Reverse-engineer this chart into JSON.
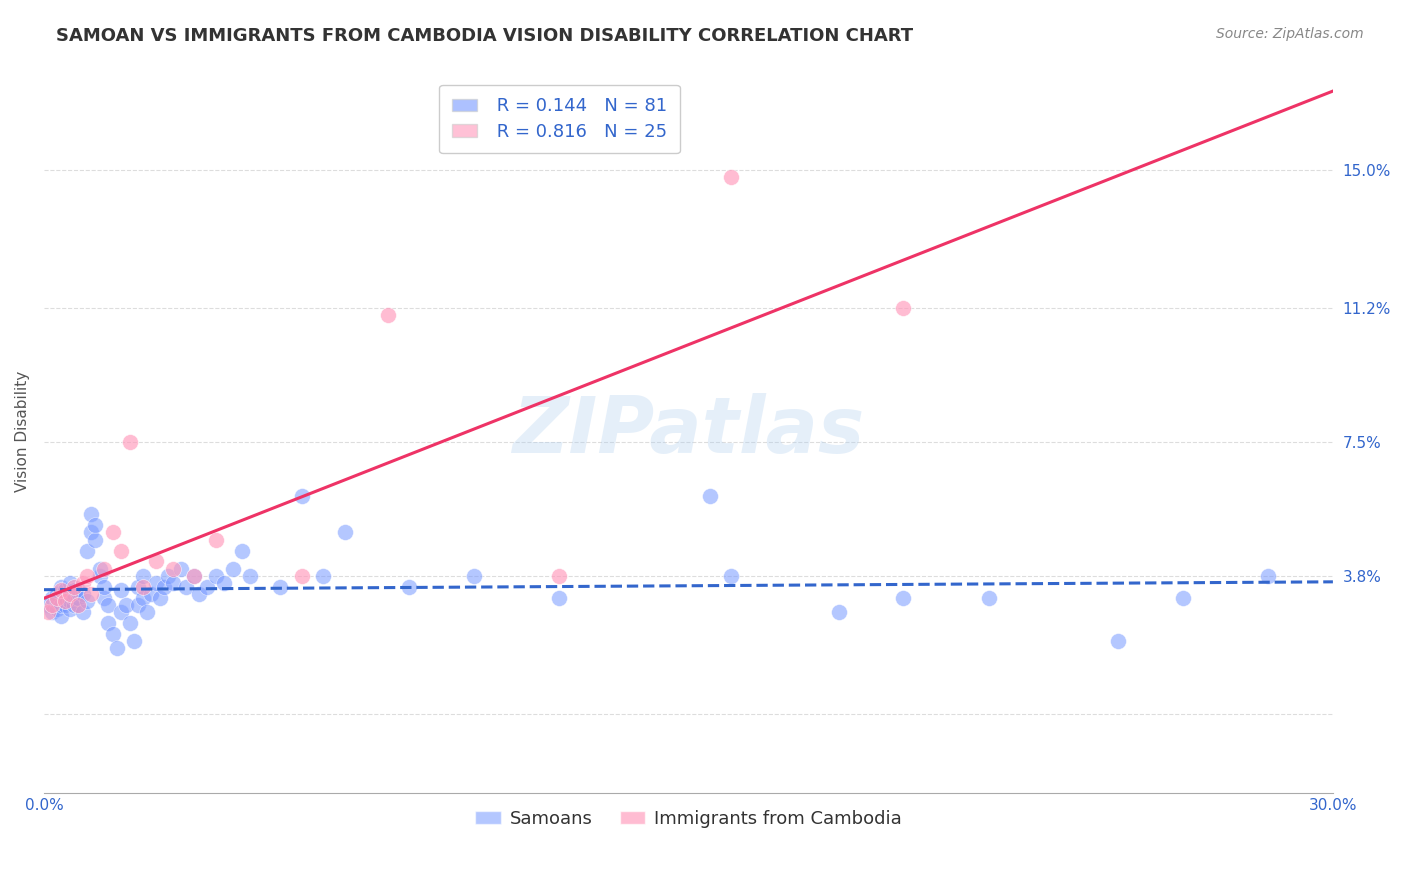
{
  "title": "SAMOAN VS IMMIGRANTS FROM CAMBODIA VISION DISABILITY CORRELATION CHART",
  "source": "Source: ZipAtlas.com",
  "ylabel": "Vision Disability",
  "xlim": [
    0.0,
    0.3
  ],
  "ylim": [
    -0.022,
    0.178
  ],
  "xticks": [
    0.0,
    0.05,
    0.1,
    0.15,
    0.2,
    0.25,
    0.3
  ],
  "xticklabels": [
    "0.0%",
    "",
    "",
    "",
    "",
    "",
    "30.0%"
  ],
  "ytick_positions": [
    0.0,
    0.038,
    0.075,
    0.112,
    0.15
  ],
  "yticklabels": [
    "",
    "3.8%",
    "7.5%",
    "11.2%",
    "15.0%"
  ],
  "background_color": "#ffffff",
  "grid_color": "#dddddd",
  "watermark": "ZIPatlas",
  "blue_color": "#7799ff",
  "pink_color": "#ff99bb",
  "blue_line_color": "#3366cc",
  "pink_line_color": "#ee3366",
  "R_blue": 0.144,
  "N_blue": 81,
  "R_pink": 0.816,
  "N_pink": 25,
  "blue_scatter_x": [
    0.001,
    0.002,
    0.002,
    0.003,
    0.003,
    0.003,
    0.004,
    0.004,
    0.004,
    0.005,
    0.005,
    0.005,
    0.005,
    0.006,
    0.006,
    0.006,
    0.006,
    0.007,
    0.007,
    0.007,
    0.007,
    0.008,
    0.008,
    0.008,
    0.009,
    0.009,
    0.01,
    0.01,
    0.011,
    0.011,
    0.012,
    0.012,
    0.013,
    0.013,
    0.014,
    0.014,
    0.015,
    0.015,
    0.016,
    0.017,
    0.018,
    0.018,
    0.019,
    0.02,
    0.021,
    0.022,
    0.022,
    0.023,
    0.023,
    0.024,
    0.025,
    0.026,
    0.027,
    0.028,
    0.029,
    0.03,
    0.032,
    0.033,
    0.035,
    0.036,
    0.038,
    0.04,
    0.042,
    0.044,
    0.046,
    0.048,
    0.055,
    0.06,
    0.065,
    0.07,
    0.085,
    0.1,
    0.12,
    0.155,
    0.16,
    0.185,
    0.2,
    0.22,
    0.25,
    0.265,
    0.285
  ],
  "blue_scatter_y": [
    0.03,
    0.028,
    0.032,
    0.033,
    0.029,
    0.031,
    0.035,
    0.027,
    0.03,
    0.031,
    0.032,
    0.034,
    0.03,
    0.029,
    0.031,
    0.033,
    0.036,
    0.03,
    0.032,
    0.034,
    0.033,
    0.03,
    0.032,
    0.034,
    0.028,
    0.033,
    0.031,
    0.045,
    0.05,
    0.055,
    0.048,
    0.052,
    0.038,
    0.04,
    0.032,
    0.035,
    0.025,
    0.03,
    0.022,
    0.018,
    0.028,
    0.034,
    0.03,
    0.025,
    0.02,
    0.03,
    0.035,
    0.032,
    0.038,
    0.028,
    0.033,
    0.036,
    0.032,
    0.035,
    0.038,
    0.036,
    0.04,
    0.035,
    0.038,
    0.033,
    0.035,
    0.038,
    0.036,
    0.04,
    0.045,
    0.038,
    0.035,
    0.06,
    0.038,
    0.05,
    0.035,
    0.038,
    0.032,
    0.06,
    0.038,
    0.028,
    0.032,
    0.032,
    0.02,
    0.032,
    0.038
  ],
  "pink_scatter_x": [
    0.001,
    0.002,
    0.003,
    0.004,
    0.005,
    0.006,
    0.007,
    0.008,
    0.009,
    0.01,
    0.011,
    0.014,
    0.016,
    0.018,
    0.02,
    0.023,
    0.026,
    0.03,
    0.035,
    0.04,
    0.06,
    0.08,
    0.12,
    0.16,
    0.2
  ],
  "pink_scatter_y": [
    0.028,
    0.03,
    0.032,
    0.034,
    0.031,
    0.033,
    0.035,
    0.03,
    0.036,
    0.038,
    0.033,
    0.04,
    0.05,
    0.045,
    0.075,
    0.035,
    0.042,
    0.04,
    0.038,
    0.048,
    0.038,
    0.11,
    0.038,
    0.148,
    0.112
  ],
  "legend_label_blue": "Samoans",
  "legend_label_pink": "Immigrants from Cambodia",
  "title_fontsize": 13,
  "label_fontsize": 11,
  "tick_fontsize": 11,
  "source_fontsize": 10,
  "legend_fontsize": 13
}
